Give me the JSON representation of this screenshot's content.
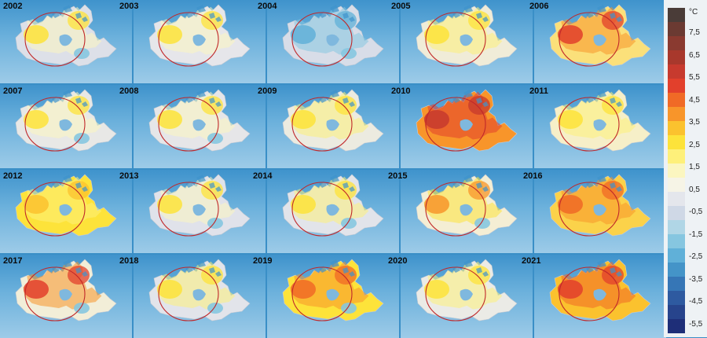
{
  "years": [
    "2002",
    "2003",
    "2004",
    "2005",
    "2006",
    "2007",
    "2008",
    "2009",
    "2010",
    "2011",
    "2012",
    "2013",
    "2014",
    "2015",
    "2016",
    "2017",
    "2018",
    "2019",
    "2020",
    "2021"
  ],
  "legend": {
    "unit": "°C",
    "labels": [
      "7,5",
      "6,5",
      "5,5",
      "4,5",
      "3,5",
      "2,5",
      "1,5",
      "0,5",
      "-0,5",
      "-1,5",
      "-2,5",
      "-3,5",
      "-4,5",
      "-5,5"
    ],
    "colors": [
      "#4a3c38",
      "#6b3a32",
      "#8a3a30",
      "#a8382c",
      "#c73a2e",
      "#e2402c",
      "#f06a26",
      "#f8952a",
      "#fbc22e",
      "#fde33a",
      "#fef07a",
      "#fbf6c0",
      "#f6f4e6",
      "#e4e6ec",
      "#cfd8e6",
      "#b0d6e6",
      "#86c6e0",
      "#60b0d8",
      "#4494c8",
      "#3676b6",
      "#2e5aa0",
      "#27448c",
      "#1e2e78"
    ]
  },
  "maps": [
    {
      "fill": "#dde0e8",
      "hot": "#fde33a",
      "hot2": "#fbf6c0",
      "blue": true
    },
    {
      "fill": "#e6e6ea",
      "hot": "#fde33a",
      "hot2": "#fbf6c0",
      "blue": false
    },
    {
      "fill": "#d8dde8",
      "hot": "#60b0d8",
      "hot2": "#86c6e0",
      "blue": true
    },
    {
      "fill": "#f0ecd8",
      "hot": "#fde33a",
      "hot2": "#fef07a",
      "blue": false
    },
    {
      "fill": "#fbe07a",
      "hot": "#e2402c",
      "hot2": "#f8952a",
      "blue": false
    },
    {
      "fill": "#e8e8e6",
      "hot": "#fde33a",
      "hot2": "#fbf6c0",
      "blue": true
    },
    {
      "fill": "#e6e6e8",
      "hot": "#fde33a",
      "hot2": "#fbf6c0",
      "blue": true
    },
    {
      "fill": "#ecebe0",
      "hot": "#fde33a",
      "hot2": "#fef07a",
      "blue": false
    },
    {
      "fill": "#f8952a",
      "hot": "#c73a2e",
      "hot2": "#e2402c",
      "blue": false
    },
    {
      "fill": "#f6efc8",
      "hot": "#fde33a",
      "hot2": "#fef07a",
      "blue": false
    },
    {
      "fill": "#fde33a",
      "hot": "#fbc22e",
      "hot2": "#fef07a",
      "blue": false
    },
    {
      "fill": "#e0e2ea",
      "hot": "#fde33a",
      "hot2": "#fbf6c0",
      "blue": true
    },
    {
      "fill": "#e2e4ea",
      "hot": "#fde33a",
      "hot2": "#fef07a",
      "blue": true
    },
    {
      "fill": "#f4eed4",
      "hot": "#f8952a",
      "hot2": "#fde33a",
      "blue": true
    },
    {
      "fill": "#fbd24a",
      "hot": "#f06a26",
      "hot2": "#f8952a",
      "blue": false
    },
    {
      "fill": "#f2eed8",
      "hot": "#e2402c",
      "hot2": "#f8952a",
      "blue": true
    },
    {
      "fill": "#e2e4ea",
      "hot": "#fde33a",
      "hot2": "#fef07a",
      "blue": true
    },
    {
      "fill": "#fde33a",
      "hot": "#f06a26",
      "hot2": "#f8952a",
      "blue": true
    },
    {
      "fill": "#ebebe6",
      "hot": "#fde33a",
      "hot2": "#fef07a",
      "blue": false
    },
    {
      "fill": "#fbc22e",
      "hot": "#e2402c",
      "hot2": "#f06a26",
      "blue": false
    }
  ]
}
